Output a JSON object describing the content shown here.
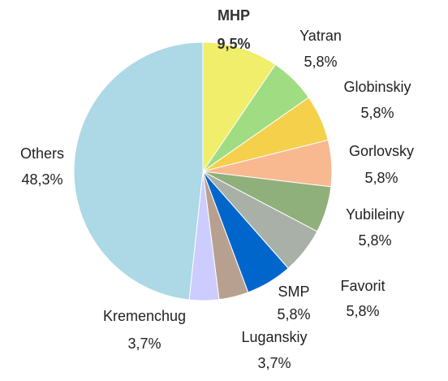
{
  "chart_data": {
    "type": "pie",
    "categories": [
      "MHP",
      "Yatran",
      "Globinskiy",
      "Gorlovsky",
      "Yubileiny",
      "Favorit",
      "SMP",
      "Luganskiy",
      "Kremenchug",
      "Others"
    ],
    "values": [
      9.5,
      5.8,
      5.8,
      5.8,
      5.8,
      5.8,
      5.8,
      3.7,
      3.7,
      48.3
    ],
    "value_labels": [
      "9,5%",
      "5,8%",
      "5,8%",
      "5,8%",
      "5,8%",
      "5,8%",
      "5,8%",
      "3,7%",
      "3,7%",
      "48,3%"
    ],
    "colors": [
      "#f0ee6a",
      "#a0dc82",
      "#f5d04a",
      "#f8b890",
      "#8fb07a",
      "#a8b0a8",
      "#0066cc",
      "#b8a090",
      "#ccccff",
      "#add8e6"
    ]
  }
}
